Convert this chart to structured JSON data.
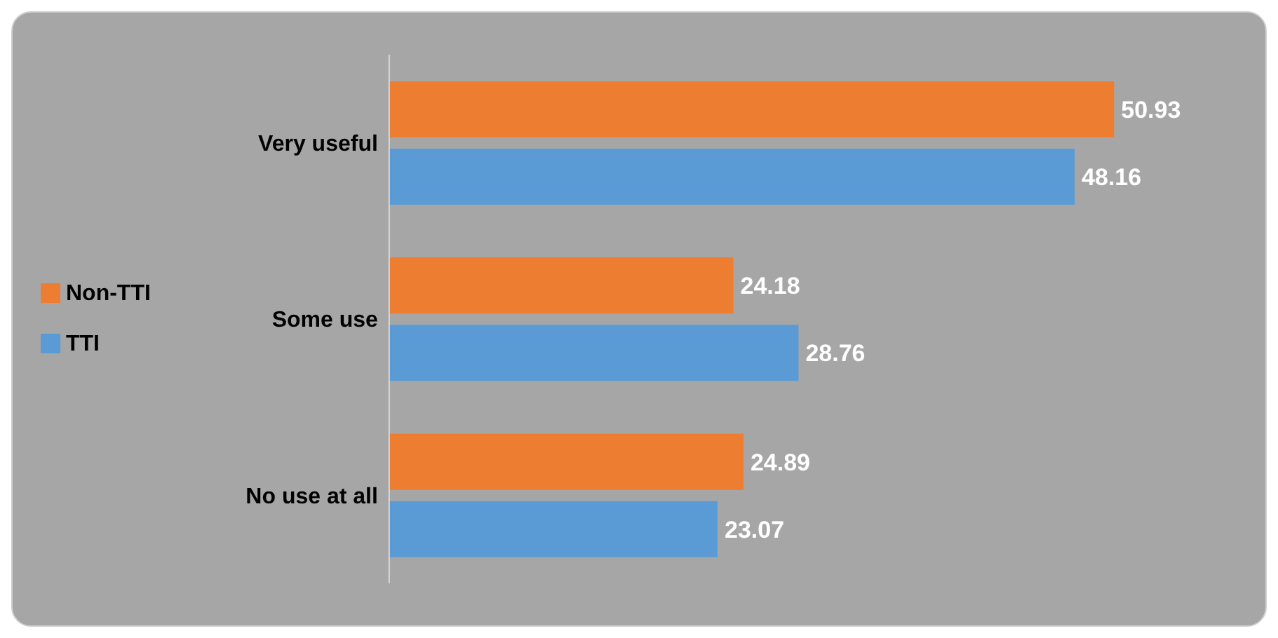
{
  "chart_data": {
    "type": "bar",
    "orientation": "horizontal",
    "categories": [
      "Very useful",
      "Some use",
      "No use at all"
    ],
    "series": [
      {
        "name": "Non-TTI",
        "color": "#ed7d31",
        "values": [
          50.93,
          24.18,
          24.89
        ]
      },
      {
        "name": "TTI",
        "color": "#5b9bd5",
        "values": [
          48.16,
          28.76,
          23.07
        ]
      }
    ],
    "data_labels": true,
    "legend": "left",
    "grid": false
  }
}
